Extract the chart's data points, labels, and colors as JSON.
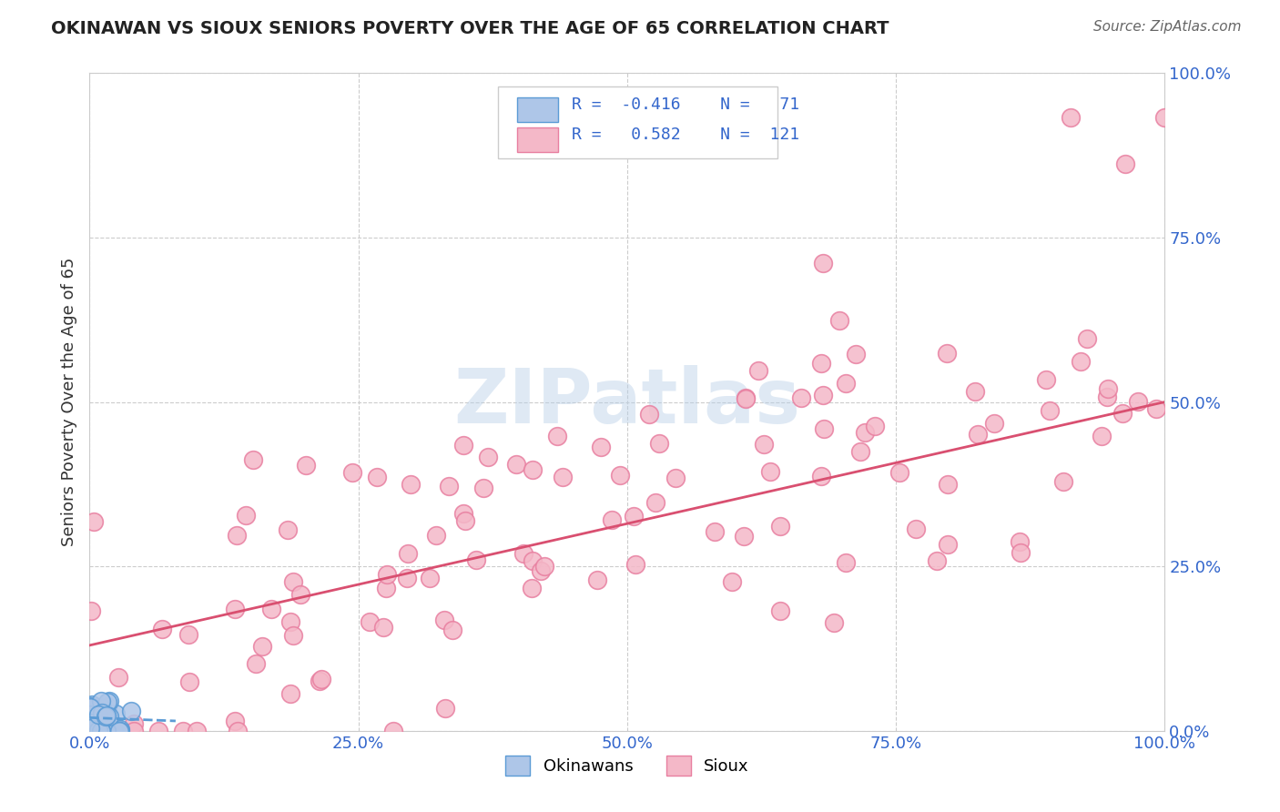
{
  "title": "OKINAWAN VS SIOUX SENIORS POVERTY OVER THE AGE OF 65 CORRELATION CHART",
  "source": "Source: ZipAtlas.com",
  "ylabel": "Seniors Poverty Over the Age of 65",
  "xlim": [
    0,
    1.0
  ],
  "ylim": [
    0,
    1.0
  ],
  "xticks": [
    0.0,
    0.25,
    0.5,
    0.75,
    1.0
  ],
  "yticks": [
    0.0,
    0.25,
    0.5,
    0.75,
    1.0
  ],
  "xticklabels": [
    "0.0%",
    "25.0%",
    "50.0%",
    "75.0%",
    "100.0%"
  ],
  "yticklabels": [
    "0.0%",
    "25.0%",
    "50.0%",
    "75.0%",
    "100.0%"
  ],
  "grid_color": "#cccccc",
  "background_color": "#ffffff",
  "legend_R1": "-0.416",
  "legend_N1": "71",
  "legend_R2": "0.582",
  "legend_N2": "121",
  "okinawan_color": "#aec6e8",
  "sioux_color": "#f4b8c8",
  "okinawan_edge": "#5b9bd5",
  "sioux_edge": "#e87fa0",
  "trend_color_sioux": "#d94f70",
  "trend_color_okinawan": "#5b9bd5",
  "title_color": "#222222",
  "tick_color": "#3366cc",
  "ylabel_color": "#333333"
}
